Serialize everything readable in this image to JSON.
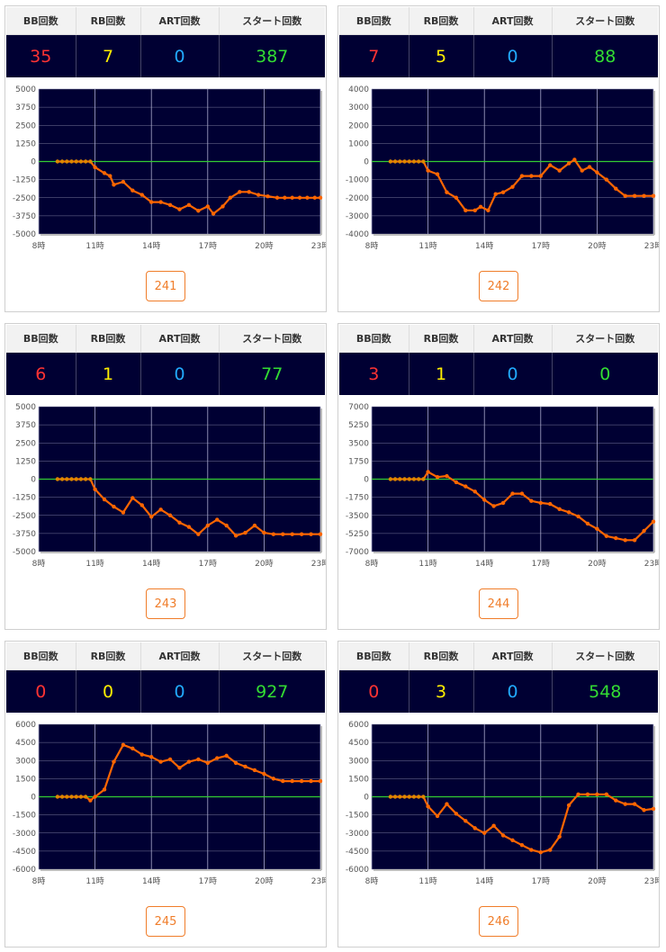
{
  "headers": {
    "bb": "BB回数",
    "rb": "RB回数",
    "art": "ART回数",
    "start": "スタート回数"
  },
  "colors": {
    "bb": "#ff3333",
    "rb": "#ffee00",
    "art": "#22aaff",
    "start": "#33dd33",
    "line": "#ff6600",
    "zero": "#33cc33",
    "plot_bg": "#000033"
  },
  "machines": [
    {
      "number": "241",
      "bb": "35",
      "rb": "7",
      "art": "0",
      "start": "387",
      "chart_data": {
        "type": "line",
        "x_ticks": [
          "8時",
          "11時",
          "14時",
          "17時",
          "20時",
          "23時"
        ],
        "y_ticks": [
          "5000",
          "3750",
          "2500",
          "1250",
          "0",
          "-1250",
          "-2500",
          "-3750",
          "-5000"
        ],
        "ylim": [
          -5000,
          5000
        ],
        "xlim": [
          8,
          23
        ],
        "series": [
          {
            "values": [
              [
                9,
                0
              ],
              [
                9.25,
                0
              ],
              [
                9.5,
                0
              ],
              [
                9.75,
                0
              ],
              [
                10,
                0
              ],
              [
                10.25,
                0
              ],
              [
                10.5,
                0
              ],
              [
                10.75,
                0
              ],
              [
                11,
                -400
              ],
              [
                11.5,
                -800
              ],
              [
                11.8,
                -1000
              ],
              [
                12,
                -1600
              ],
              [
                12.5,
                -1400
              ],
              [
                13,
                -2000
              ],
              [
                13.5,
                -2300
              ],
              [
                14,
                -2800
              ],
              [
                14.5,
                -2800
              ],
              [
                15,
                -3000
              ],
              [
                15.5,
                -3300
              ],
              [
                16,
                -3000
              ],
              [
                16.5,
                -3400
              ],
              [
                17,
                -3100
              ],
              [
                17.3,
                -3600
              ],
              [
                17.8,
                -3100
              ],
              [
                18.2,
                -2500
              ],
              [
                18.7,
                -2100
              ],
              [
                19.2,
                -2100
              ],
              [
                19.7,
                -2300
              ],
              [
                20.2,
                -2400
              ],
              [
                20.7,
                -2500
              ],
              [
                21.1,
                -2500
              ],
              [
                21.5,
                -2500
              ],
              [
                21.9,
                -2500
              ],
              [
                22.3,
                -2500
              ],
              [
                22.7,
                -2500
              ],
              [
                23,
                -2500
              ]
            ]
          }
        ]
      }
    },
    {
      "number": "242",
      "bb": "7",
      "rb": "5",
      "art": "0",
      "start": "88",
      "chart_data": {
        "type": "line",
        "x_ticks": [
          "8時",
          "11時",
          "14時",
          "17時",
          "20時",
          "23時"
        ],
        "y_ticks": [
          "4000",
          "3000",
          "2000",
          "1000",
          "0",
          "-1000",
          "-2000",
          "-3000",
          "-4000"
        ],
        "ylim": [
          -4000,
          4000
        ],
        "xlim": [
          8,
          23
        ],
        "series": [
          {
            "values": [
              [
                9,
                0
              ],
              [
                9.25,
                0
              ],
              [
                9.5,
                0
              ],
              [
                9.75,
                0
              ],
              [
                10,
                0
              ],
              [
                10.25,
                0
              ],
              [
                10.5,
                0
              ],
              [
                10.75,
                0
              ],
              [
                11,
                -500
              ],
              [
                11.5,
                -700
              ],
              [
                12,
                -1700
              ],
              [
                12.5,
                -2000
              ],
              [
                13,
                -2700
              ],
              [
                13.5,
                -2700
              ],
              [
                13.8,
                -2500
              ],
              [
                14.2,
                -2700
              ],
              [
                14.6,
                -1800
              ],
              [
                15,
                -1700
              ],
              [
                15.5,
                -1400
              ],
              [
                16,
                -800
              ],
              [
                16.5,
                -800
              ],
              [
                17,
                -800
              ],
              [
                17.5,
                -200
              ],
              [
                18,
                -500
              ],
              [
                18.5,
                -100
              ],
              [
                18.8,
                100
              ],
              [
                19.2,
                -500
              ],
              [
                19.6,
                -300
              ],
              [
                20,
                -600
              ],
              [
                20.5,
                -1000
              ],
              [
                21,
                -1500
              ],
              [
                21.5,
                -1900
              ],
              [
                22,
                -1900
              ],
              [
                22.5,
                -1900
              ],
              [
                23,
                -1900
              ]
            ]
          }
        ]
      }
    },
    {
      "number": "243",
      "bb": "6",
      "rb": "1",
      "art": "0",
      "start": "77",
      "chart_data": {
        "type": "line",
        "x_ticks": [
          "8時",
          "11時",
          "14時",
          "17時",
          "20時",
          "23時"
        ],
        "y_ticks": [
          "5000",
          "3750",
          "2500",
          "1250",
          "0",
          "-1250",
          "-2500",
          "-3750",
          "-5000"
        ],
        "ylim": [
          -5000,
          5000
        ],
        "xlim": [
          8,
          23
        ],
        "series": [
          {
            "values": [
              [
                9,
                0
              ],
              [
                9.25,
                0
              ],
              [
                9.5,
                0
              ],
              [
                9.75,
                0
              ],
              [
                10,
                0
              ],
              [
                10.25,
                0
              ],
              [
                10.5,
                0
              ],
              [
                10.75,
                0
              ],
              [
                11,
                -700
              ],
              [
                11.5,
                -1400
              ],
              [
                12,
                -1900
              ],
              [
                12.5,
                -2300
              ],
              [
                13,
                -1300
              ],
              [
                13.5,
                -1800
              ],
              [
                14,
                -2600
              ],
              [
                14.5,
                -2100
              ],
              [
                15,
                -2500
              ],
              [
                15.5,
                -3000
              ],
              [
                16,
                -3300
              ],
              [
                16.5,
                -3800
              ],
              [
                17,
                -3200
              ],
              [
                17.5,
                -2800
              ],
              [
                18,
                -3200
              ],
              [
                18.5,
                -3900
              ],
              [
                19,
                -3700
              ],
              [
                19.5,
                -3200
              ],
              [
                20,
                -3700
              ],
              [
                20.5,
                -3800
              ],
              [
                21,
                -3800
              ],
              [
                21.5,
                -3800
              ],
              [
                22,
                -3800
              ],
              [
                22.5,
                -3800
              ],
              [
                23,
                -3800
              ]
            ]
          }
        ]
      }
    },
    {
      "number": "244",
      "bb": "3",
      "rb": "1",
      "art": "0",
      "start": "0",
      "chart_data": {
        "type": "line",
        "x_ticks": [
          "8時",
          "11時",
          "14時",
          "17時",
          "20時",
          "23時"
        ],
        "y_ticks": [
          "7000",
          "5250",
          "3500",
          "1750",
          "0",
          "-1750",
          "-3500",
          "-5250",
          "-7000"
        ],
        "ylim": [
          -7000,
          7000
        ],
        "xlim": [
          8,
          23
        ],
        "series": [
          {
            "values": [
              [
                9,
                0
              ],
              [
                9.25,
                0
              ],
              [
                9.5,
                0
              ],
              [
                9.75,
                0
              ],
              [
                10,
                0
              ],
              [
                10.25,
                0
              ],
              [
                10.5,
                0
              ],
              [
                10.75,
                0
              ],
              [
                11,
                700
              ],
              [
                11.5,
                200
              ],
              [
                12,
                300
              ],
              [
                12.5,
                -300
              ],
              [
                13,
                -700
              ],
              [
                13.5,
                -1200
              ],
              [
                14,
                -2000
              ],
              [
                14.5,
                -2600
              ],
              [
                15,
                -2300
              ],
              [
                15.5,
                -1400
              ],
              [
                16,
                -1400
              ],
              [
                16.5,
                -2100
              ],
              [
                17,
                -2300
              ],
              [
                17.5,
                -2400
              ],
              [
                18,
                -2900
              ],
              [
                18.5,
                -3200
              ],
              [
                19,
                -3600
              ],
              [
                19.5,
                -4300
              ],
              [
                20,
                -4800
              ],
              [
                20.5,
                -5500
              ],
              [
                21,
                -5700
              ],
              [
                21.5,
                -5900
              ],
              [
                22,
                -5900
              ],
              [
                22.5,
                -5000
              ],
              [
                23,
                -4100
              ]
            ]
          }
        ]
      }
    },
    {
      "number": "245",
      "bb": "0",
      "rb": "0",
      "art": "0",
      "start": "927",
      "chart_data": {
        "type": "line",
        "x_ticks": [
          "8時",
          "11時",
          "14時",
          "17時",
          "20時",
          "23時"
        ],
        "y_ticks": [
          "6000",
          "4500",
          "3000",
          "1500",
          "0",
          "-1500",
          "-3000",
          "-4500",
          "-6000"
        ],
        "ylim": [
          -6000,
          6000
        ],
        "xlim": [
          8,
          23
        ],
        "series": [
          {
            "values": [
              [
                9,
                0
              ],
              [
                9.25,
                0
              ],
              [
                9.5,
                0
              ],
              [
                9.75,
                0
              ],
              [
                10,
                0
              ],
              [
                10.25,
                0
              ],
              [
                10.5,
                0
              ],
              [
                10.75,
                -300
              ],
              [
                11,
                0
              ],
              [
                11.5,
                600
              ],
              [
                12,
                2900
              ],
              [
                12.5,
                4300
              ],
              [
                13,
                4000
              ],
              [
                13.5,
                3500
              ],
              [
                14,
                3300
              ],
              [
                14.5,
                2900
              ],
              [
                15,
                3100
              ],
              [
                15.5,
                2400
              ],
              [
                16,
                2900
              ],
              [
                16.5,
                3100
              ],
              [
                17,
                2800
              ],
              [
                17.5,
                3200
              ],
              [
                18,
                3400
              ],
              [
                18.5,
                2800
              ],
              [
                19,
                2500
              ],
              [
                19.5,
                2200
              ],
              [
                20,
                1900
              ],
              [
                20.5,
                1500
              ],
              [
                21,
                1300
              ],
              [
                21.5,
                1300
              ],
              [
                22,
                1300
              ],
              [
                22.5,
                1300
              ],
              [
                23,
                1300
              ]
            ]
          }
        ]
      }
    },
    {
      "number": "246",
      "bb": "0",
      "rb": "3",
      "art": "0",
      "start": "548",
      "chart_data": {
        "type": "line",
        "x_ticks": [
          "8時",
          "11時",
          "14時",
          "17時",
          "20時",
          "23時"
        ],
        "y_ticks": [
          "6000",
          "4500",
          "3000",
          "1500",
          "0",
          "-1500",
          "-3000",
          "-4500",
          "-6000"
        ],
        "ylim": [
          -6000,
          6000
        ],
        "xlim": [
          8,
          23
        ],
        "series": [
          {
            "values": [
              [
                9,
                0
              ],
              [
                9.25,
                0
              ],
              [
                9.5,
                0
              ],
              [
                9.75,
                0
              ],
              [
                10,
                0
              ],
              [
                10.25,
                0
              ],
              [
                10.5,
                0
              ],
              [
                10.75,
                0
              ],
              [
                11,
                -800
              ],
              [
                11.5,
                -1600
              ],
              [
                12,
                -600
              ],
              [
                12.5,
                -1400
              ],
              [
                13,
                -2000
              ],
              [
                13.5,
                -2600
              ],
              [
                14,
                -3000
              ],
              [
                14.5,
                -2400
              ],
              [
                15,
                -3200
              ],
              [
                15.5,
                -3600
              ],
              [
                16,
                -4000
              ],
              [
                16.5,
                -4400
              ],
              [
                17,
                -4600
              ],
              [
                17.5,
                -4400
              ],
              [
                18,
                -3300
              ],
              [
                18.5,
                -700
              ],
              [
                19,
                200
              ],
              [
                19.5,
                200
              ],
              [
                20,
                200
              ],
              [
                20.5,
                200
              ],
              [
                21,
                -300
              ],
              [
                21.5,
                -600
              ],
              [
                22,
                -600
              ],
              [
                22.5,
                -1100
              ],
              [
                23,
                -1000
              ]
            ]
          }
        ]
      }
    }
  ]
}
